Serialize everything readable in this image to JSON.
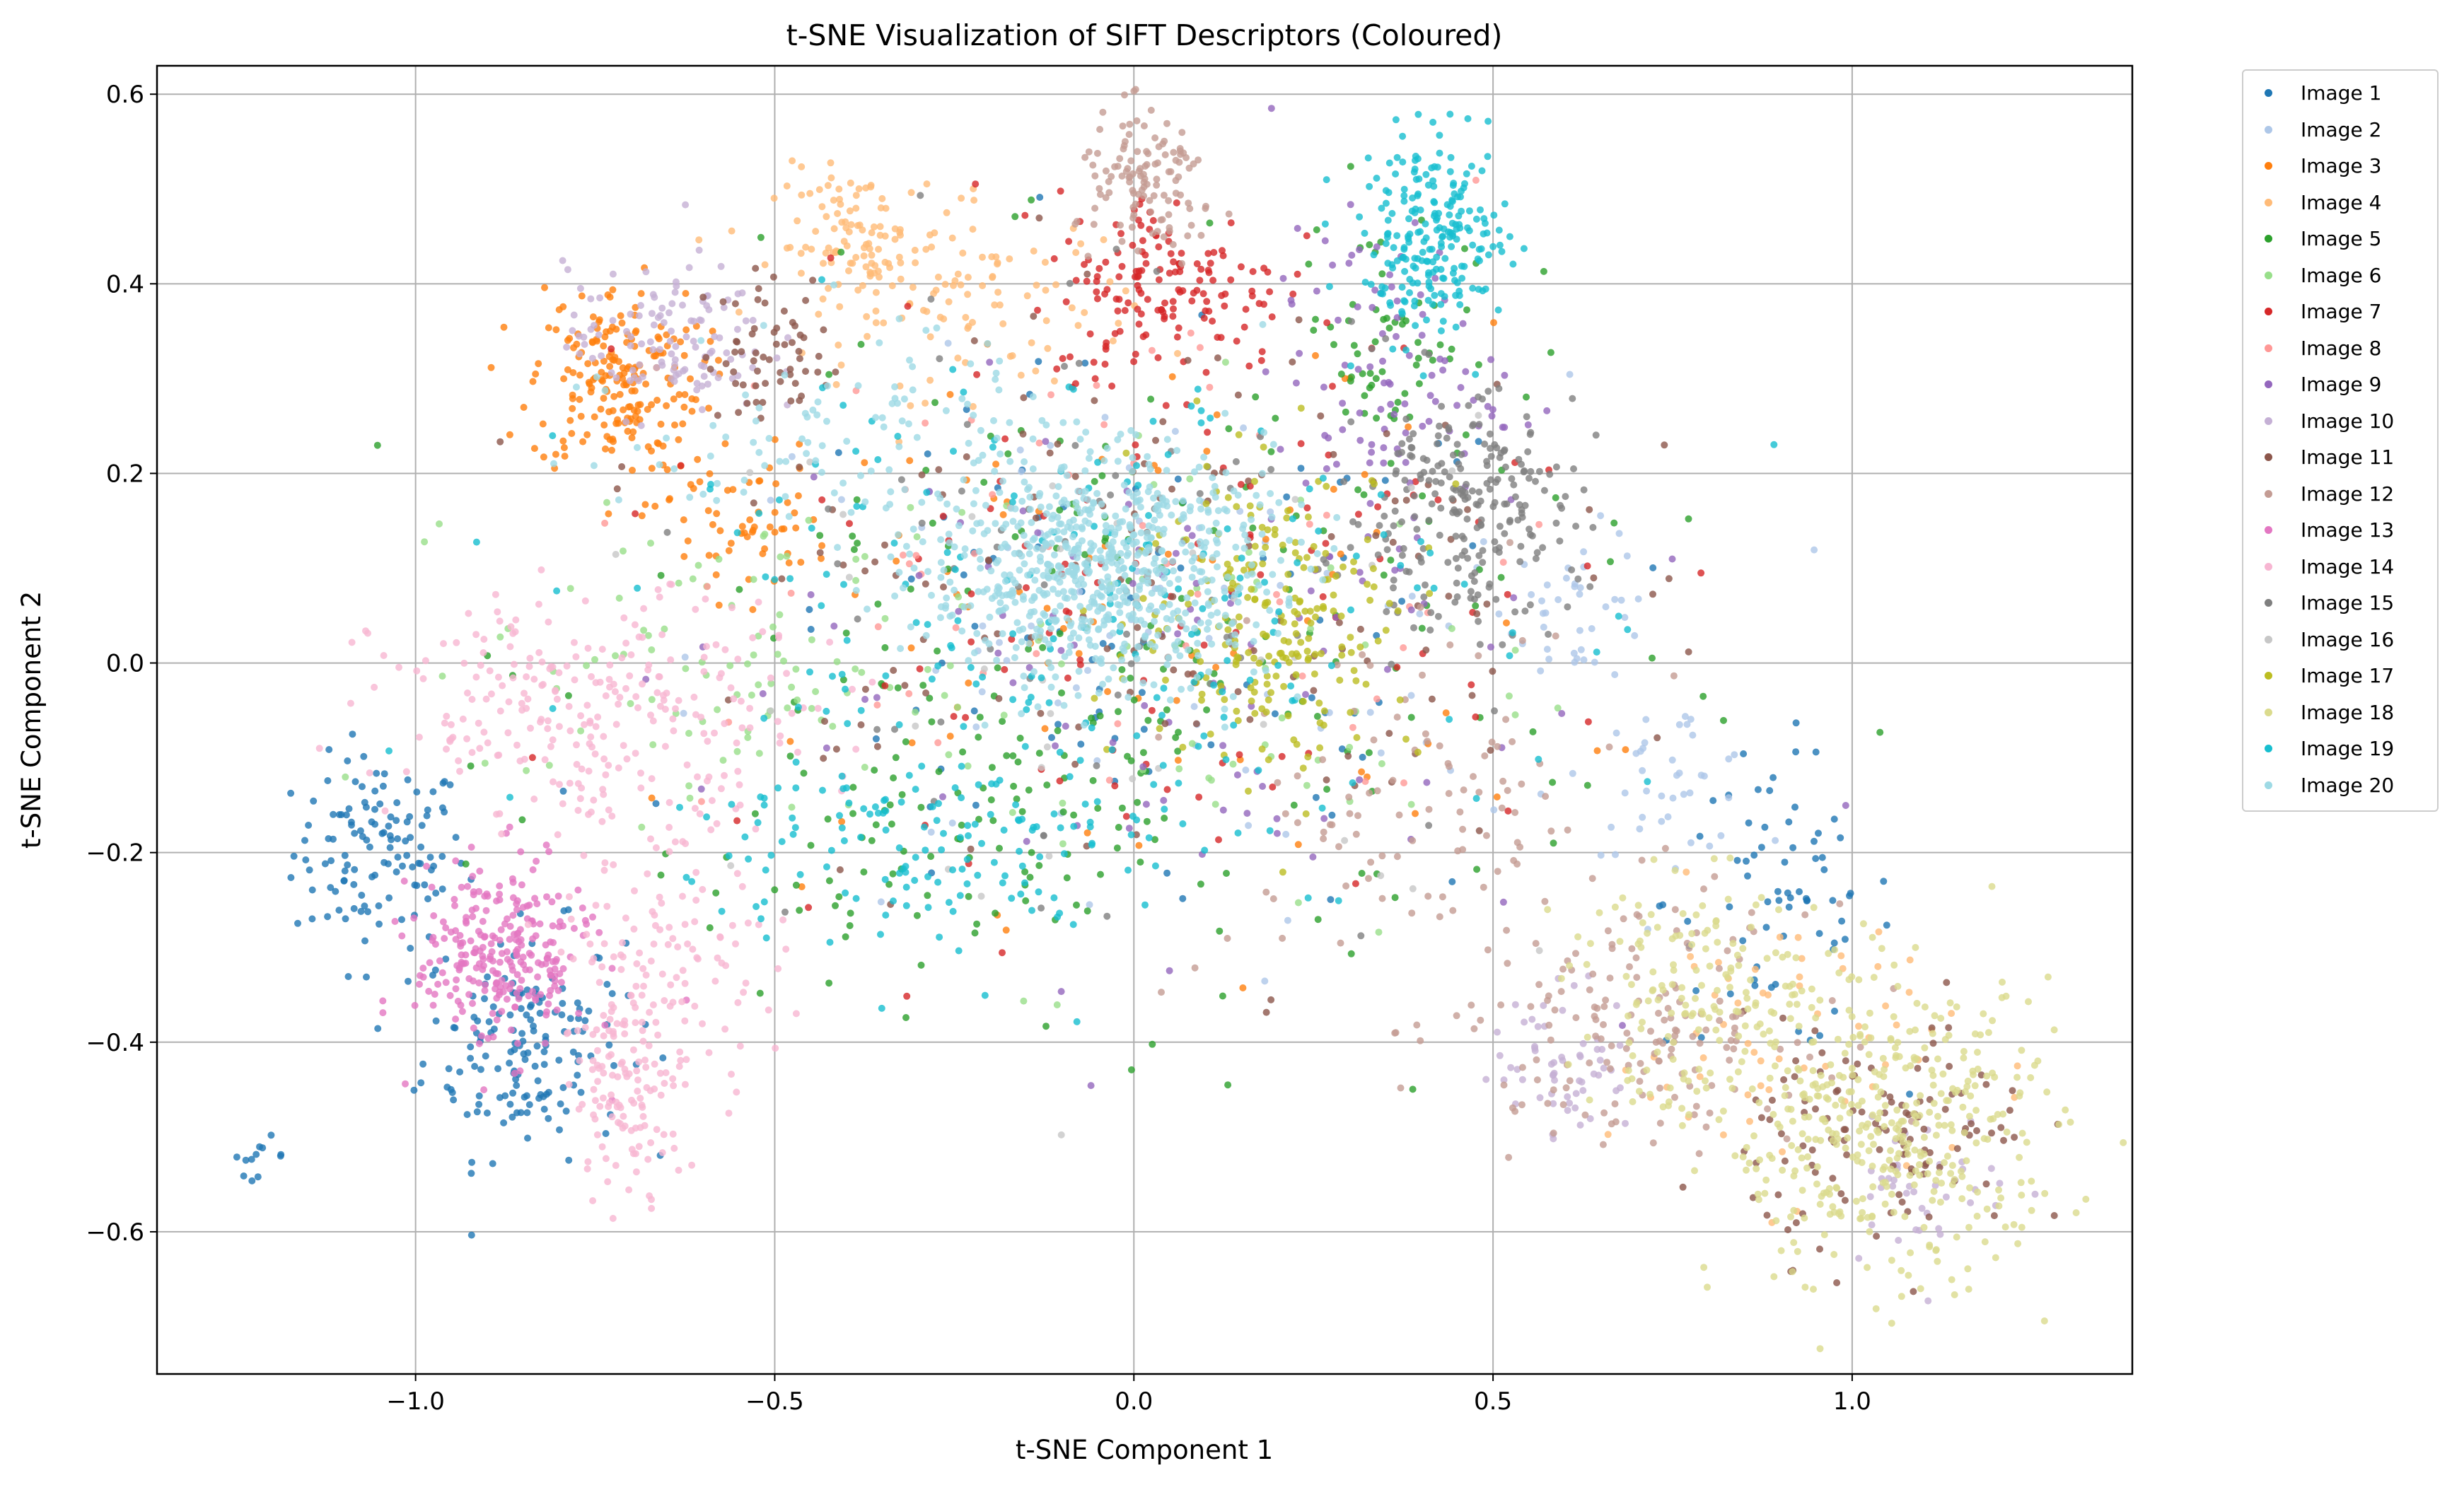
{
  "chart_data": {
    "type": "scatter",
    "title": "t-SNE Visualization of SIFT Descriptors (Coloured)",
    "xlabel": "t-SNE Component 1",
    "ylabel": "t-SNE Component 2",
    "xlim": [
      -1.36,
      1.39
    ],
    "ylim": [
      -0.75,
      0.63
    ],
    "xticks": [
      -1.0,
      -0.5,
      0.0,
      0.5,
      1.0
    ],
    "xtick_labels": [
      "−1.0",
      "−0.5",
      "0.0",
      "0.5",
      "1.0"
    ],
    "yticks": [
      -0.6,
      -0.4,
      -0.2,
      0.0,
      0.2,
      0.4,
      0.6
    ],
    "ytick_labels": [
      "−0.6",
      "−0.4",
      "−0.2",
      "0.0",
      "0.2",
      "0.4",
      "0.6"
    ],
    "grid": true,
    "legend_position": "outside-top-right",
    "series": [
      {
        "name": "Image 1",
        "color": "#1f77b4",
        "clusters": [
          {
            "cx": -1.05,
            "cy": -0.2,
            "sx": 0.06,
            "sy": 0.05,
            "n": 120
          },
          {
            "cx": -0.85,
            "cy": -0.4,
            "sx": 0.07,
            "sy": 0.06,
            "n": 160
          },
          {
            "cx": -1.22,
            "cy": -0.52,
            "sx": 0.02,
            "sy": 0.01,
            "n": 12
          },
          {
            "cx": 0.9,
            "cy": -0.25,
            "sx": 0.08,
            "sy": 0.08,
            "n": 70
          },
          {
            "cx": 0.0,
            "cy": 0.0,
            "sx": 0.3,
            "sy": 0.15,
            "n": 90
          }
        ]
      },
      {
        "name": "Image 2",
        "color": "#aec7e8",
        "clusters": [
          {
            "cx": 0.62,
            "cy": 0.06,
            "sx": 0.05,
            "sy": 0.04,
            "n": 40
          },
          {
            "cx": 0.75,
            "cy": -0.12,
            "sx": 0.06,
            "sy": 0.04,
            "n": 40
          },
          {
            "cx": 0.0,
            "cy": 0.0,
            "sx": 0.3,
            "sy": 0.15,
            "n": 80
          }
        ]
      },
      {
        "name": "Image 3",
        "color": "#ff7f0e",
        "clusters": [
          {
            "cx": -0.72,
            "cy": 0.3,
            "sx": 0.06,
            "sy": 0.05,
            "n": 200
          },
          {
            "cx": -0.55,
            "cy": 0.15,
            "sx": 0.06,
            "sy": 0.04,
            "n": 60
          },
          {
            "cx": 0.0,
            "cy": 0.05,
            "sx": 0.3,
            "sy": 0.15,
            "n": 90
          }
        ]
      },
      {
        "name": "Image 4",
        "color": "#ffbb78",
        "clusters": [
          {
            "cx": -0.38,
            "cy": 0.44,
            "sx": 0.06,
            "sy": 0.04,
            "n": 120
          },
          {
            "cx": -0.2,
            "cy": 0.38,
            "sx": 0.1,
            "sy": 0.05,
            "n": 80
          },
          {
            "cx": 0.9,
            "cy": -0.4,
            "sx": 0.12,
            "sy": 0.08,
            "n": 60
          }
        ]
      },
      {
        "name": "Image 5",
        "color": "#2ca02c",
        "clusters": [
          {
            "cx": 0.0,
            "cy": 0.0,
            "sx": 0.35,
            "sy": 0.18,
            "n": 200
          },
          {
            "cx": 0.35,
            "cy": 0.35,
            "sx": 0.06,
            "sy": 0.06,
            "n": 60
          },
          {
            "cx": -0.3,
            "cy": -0.2,
            "sx": 0.15,
            "sy": 0.08,
            "n": 80
          }
        ]
      },
      {
        "name": "Image 6",
        "color": "#98df8a",
        "clusters": [
          {
            "cx": -0.6,
            "cy": 0.0,
            "sx": 0.15,
            "sy": 0.08,
            "n": 80
          },
          {
            "cx": 0.0,
            "cy": 0.0,
            "sx": 0.3,
            "sy": 0.15,
            "n": 80
          }
        ]
      },
      {
        "name": "Image 7",
        "color": "#d62728",
        "clusters": [
          {
            "cx": 0.05,
            "cy": 0.4,
            "sx": 0.08,
            "sy": 0.05,
            "n": 150
          },
          {
            "cx": 0.0,
            "cy": 0.1,
            "sx": 0.3,
            "sy": 0.15,
            "n": 120
          }
        ]
      },
      {
        "name": "Image 8",
        "color": "#ff9896",
        "clusters": [
          {
            "cx": 0.0,
            "cy": 0.1,
            "sx": 0.3,
            "sy": 0.15,
            "n": 60
          }
        ]
      },
      {
        "name": "Image 9",
        "color": "#9467bd",
        "clusters": [
          {
            "cx": 0.35,
            "cy": 0.3,
            "sx": 0.08,
            "sy": 0.08,
            "n": 100
          },
          {
            "cx": 0.0,
            "cy": 0.0,
            "sx": 0.3,
            "sy": 0.15,
            "n": 100
          }
        ]
      },
      {
        "name": "Image 10",
        "color": "#c5b0d5",
        "clusters": [
          {
            "cx": -0.65,
            "cy": 0.34,
            "sx": 0.07,
            "sy": 0.04,
            "n": 120
          },
          {
            "cx": 0.6,
            "cy": -0.42,
            "sx": 0.05,
            "sy": 0.04,
            "n": 60
          },
          {
            "cx": 1.1,
            "cy": -0.55,
            "sx": 0.06,
            "sy": 0.04,
            "n": 40
          }
        ]
      },
      {
        "name": "Image 11",
        "color": "#8c564b",
        "clusters": [
          {
            "cx": -0.5,
            "cy": 0.33,
            "sx": 0.05,
            "sy": 0.04,
            "n": 60
          },
          {
            "cx": 0.0,
            "cy": 0.1,
            "sx": 0.3,
            "sy": 0.15,
            "n": 150
          },
          {
            "cx": 1.05,
            "cy": -0.5,
            "sx": 0.1,
            "sy": 0.06,
            "n": 120
          }
        ]
      },
      {
        "name": "Image 12",
        "color": "#c49c94",
        "clusters": [
          {
            "cx": 0.02,
            "cy": 0.5,
            "sx": 0.05,
            "sy": 0.04,
            "n": 120
          },
          {
            "cx": 0.7,
            "cy": -0.38,
            "sx": 0.12,
            "sy": 0.06,
            "n": 160
          },
          {
            "cx": 0.4,
            "cy": -0.15,
            "sx": 0.15,
            "sy": 0.1,
            "n": 100
          }
        ]
      },
      {
        "name": "Image 13",
        "color": "#e377c2",
        "clusters": [
          {
            "cx": -0.88,
            "cy": -0.31,
            "sx": 0.06,
            "sy": 0.05,
            "n": 260
          }
        ]
      },
      {
        "name": "Image 14",
        "color": "#f7b6d2",
        "clusters": [
          {
            "cx": -0.75,
            "cy": -0.05,
            "sx": 0.15,
            "sy": 0.06,
            "n": 260
          },
          {
            "cx": -0.7,
            "cy": -0.45,
            "sx": 0.04,
            "sy": 0.05,
            "n": 120
          },
          {
            "cx": -0.65,
            "cy": -0.3,
            "sx": 0.08,
            "sy": 0.08,
            "n": 120
          }
        ]
      },
      {
        "name": "Image 15",
        "color": "#7f7f7f",
        "clusters": [
          {
            "cx": 0.45,
            "cy": 0.16,
            "sx": 0.08,
            "sy": 0.06,
            "n": 220
          },
          {
            "cx": 0.0,
            "cy": 0.1,
            "sx": 0.3,
            "sy": 0.15,
            "n": 80
          }
        ]
      },
      {
        "name": "Image 16",
        "color": "#c7c7c7",
        "clusters": [
          {
            "cx": 0.0,
            "cy": 0.0,
            "sx": 0.3,
            "sy": 0.15,
            "n": 40
          }
        ]
      },
      {
        "name": "Image 17",
        "color": "#bcbd22",
        "clusters": [
          {
            "cx": 0.2,
            "cy": 0.05,
            "sx": 0.1,
            "sy": 0.08,
            "n": 220
          }
        ]
      },
      {
        "name": "Image 18",
        "color": "#dbdb8d",
        "clusters": [
          {
            "cx": 1.05,
            "cy": -0.5,
            "sx": 0.12,
            "sy": 0.08,
            "n": 400
          },
          {
            "cx": 0.8,
            "cy": -0.35,
            "sx": 0.1,
            "sy": 0.06,
            "n": 160
          }
        ]
      },
      {
        "name": "Image 19",
        "color": "#17becf",
        "clusters": [
          {
            "cx": 0.42,
            "cy": 0.45,
            "sx": 0.05,
            "sy": 0.05,
            "n": 220
          },
          {
            "cx": -0.1,
            "cy": 0.05,
            "sx": 0.3,
            "sy": 0.15,
            "n": 220
          },
          {
            "cx": -0.3,
            "cy": -0.2,
            "sx": 0.15,
            "sy": 0.06,
            "n": 120
          }
        ]
      },
      {
        "name": "Image 20",
        "color": "#9edae5",
        "clusters": [
          {
            "cx": -0.05,
            "cy": 0.1,
            "sx": 0.12,
            "sy": 0.06,
            "n": 700
          },
          {
            "cx": -0.4,
            "cy": 0.25,
            "sx": 0.15,
            "sy": 0.06,
            "n": 100
          }
        ]
      }
    ]
  }
}
